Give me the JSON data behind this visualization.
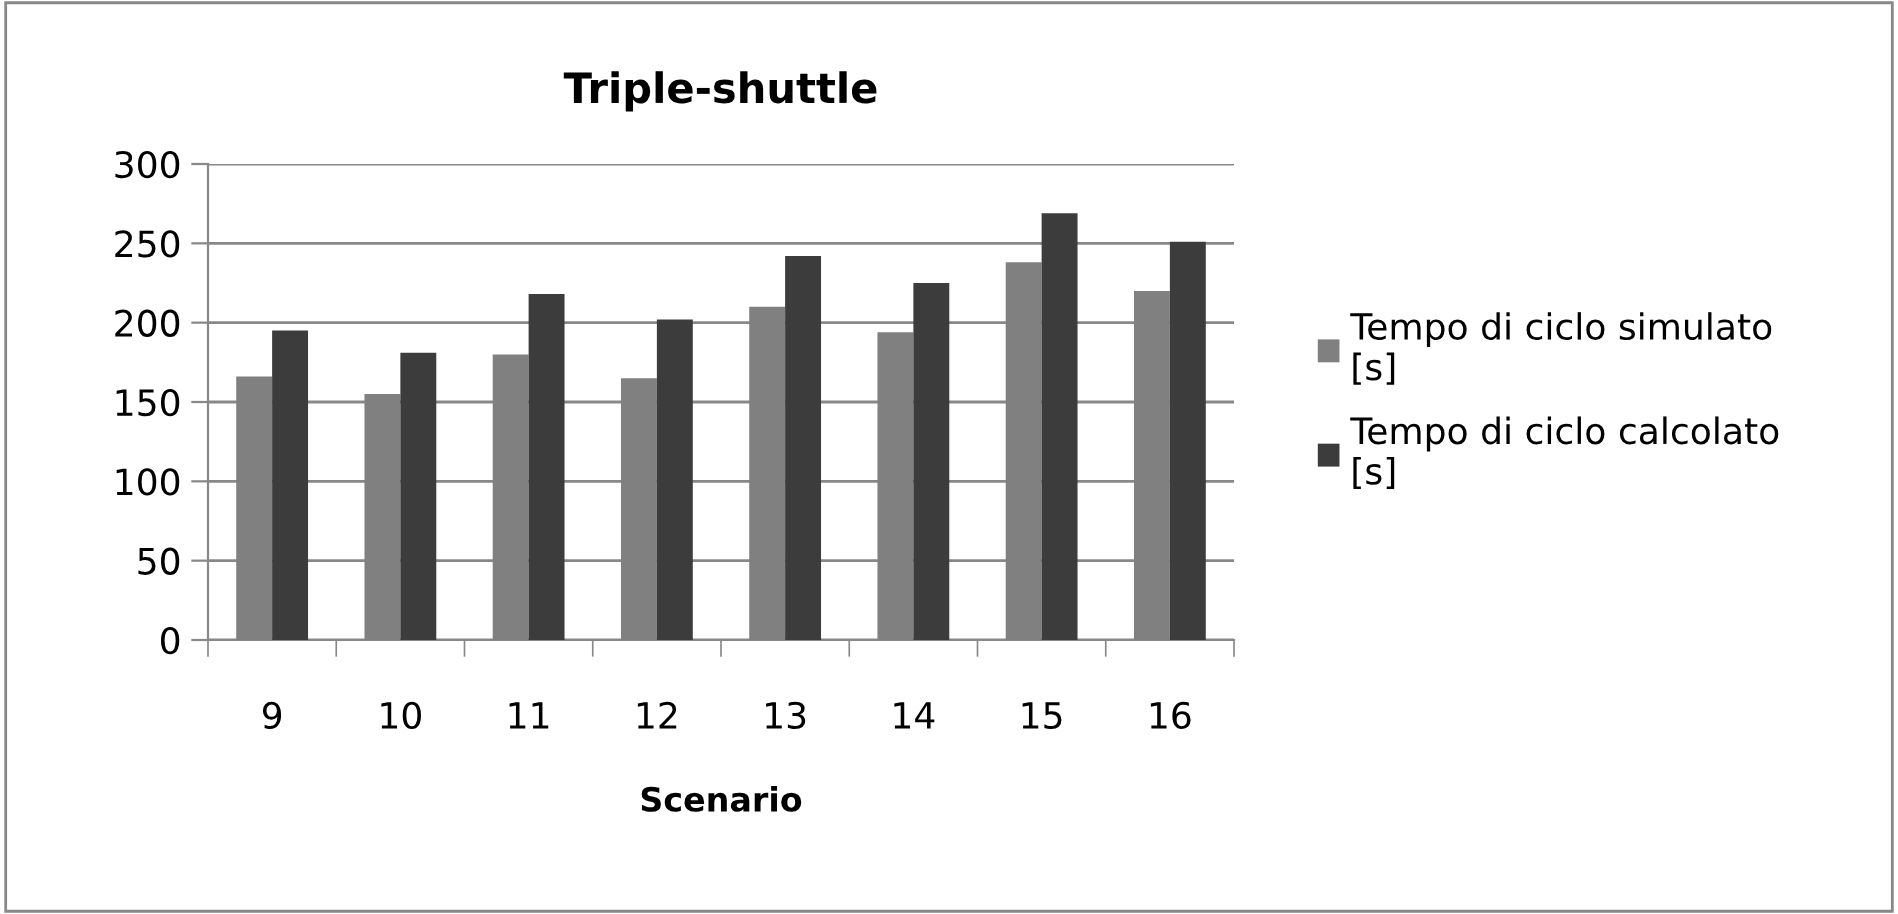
{
  "chart_data": {
    "type": "bar",
    "title": "Triple-shuttle",
    "xlabel": "Scenario",
    "categories": [
      "9",
      "10",
      "11",
      "12",
      "13",
      "14",
      "15",
      "16"
    ],
    "series": [
      {
        "name": "Tempo di ciclo simulato [s]",
        "color": "#808080",
        "values": [
          166,
          155,
          180,
          165,
          210,
          194,
          238,
          220
        ]
      },
      {
        "name": "Tempo di ciclo calcolato [s]",
        "color": "#3c3c3c",
        "values": [
          195,
          181,
          218,
          202,
          242,
          225,
          269,
          251
        ]
      }
    ],
    "ylim": [
      0,
      300
    ],
    "yticks": [
      0,
      50,
      100,
      150,
      200,
      250,
      300
    ],
    "grid": "y",
    "legend": "right"
  }
}
